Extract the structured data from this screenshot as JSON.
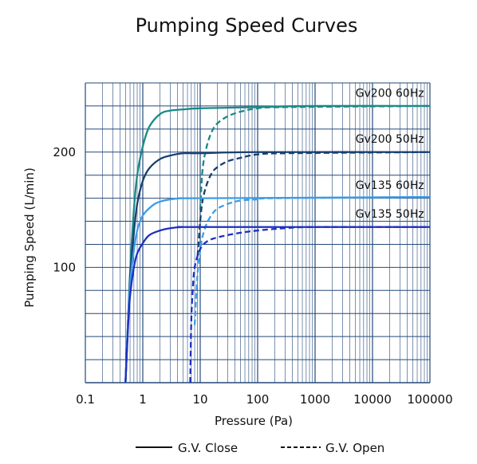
{
  "chart_data": {
    "type": "line",
    "title": "Pumping Speed Curves",
    "xlabel": "Pressure (Pa)",
    "ylabel": "Pumping Speed (L/min)",
    "x_scale": "log",
    "xlim": [
      0.1,
      100000
    ],
    "ylim": [
      0,
      260
    ],
    "x_ticks": [
      {
        "value": 0.1,
        "label": "0.1"
      },
      {
        "value": 1,
        "label": "1"
      },
      {
        "value": 10,
        "label": "10"
      },
      {
        "value": 100,
        "label": "100"
      },
      {
        "value": 1000,
        "label": "1000"
      },
      {
        "value": 10000,
        "label": "10000"
      },
      {
        "value": 100000,
        "label": "100000"
      }
    ],
    "y_ticks": [
      {
        "value": 100,
        "label": "100"
      },
      {
        "value": 200,
        "label": "200"
      }
    ],
    "y_gridlines": [
      20,
      40,
      60,
      80,
      100,
      120,
      140,
      160,
      180,
      200,
      220,
      240,
      260
    ],
    "grid": true,
    "legend": {
      "placement": "bottom",
      "entries": [
        {
          "label": "G.V. Close",
          "style": "solid"
        },
        {
          "label": "G.V. Open",
          "style": "dashed"
        }
      ]
    },
    "series": [
      {
        "name": "Gv200 60Hz",
        "color": "#1a8a84",
        "label": "Gv200 60Hz",
        "label_at": [
          20000,
          248
        ],
        "close": [
          [
            0.5,
            0
          ],
          [
            0.55,
            50
          ],
          [
            0.6,
            95
          ],
          [
            0.7,
            150
          ],
          [
            0.8,
            180
          ],
          [
            1,
            205
          ],
          [
            1.3,
            222
          ],
          [
            2,
            233
          ],
          [
            3,
            236
          ],
          [
            5,
            237
          ],
          [
            10,
            238
          ],
          [
            100,
            239
          ],
          [
            1000,
            240
          ],
          [
            100000,
            240
          ]
        ],
        "open": [
          [
            10,
            150
          ],
          [
            11,
            185
          ],
          [
            13,
            205
          ],
          [
            16,
            218
          ],
          [
            20,
            225
          ],
          [
            30,
            231
          ],
          [
            50,
            235
          ],
          [
            100,
            238
          ],
          [
            300,
            239
          ],
          [
            100000,
            240
          ]
        ]
      },
      {
        "name": "Gv200 50Hz",
        "color": "#1a3f70",
        "label": "Gv200 50Hz",
        "label_at": [
          20000,
          208
        ],
        "close": [
          [
            0.5,
            0
          ],
          [
            0.55,
            50
          ],
          [
            0.6,
            90
          ],
          [
            0.7,
            130
          ],
          [
            0.8,
            155
          ],
          [
            1,
            175
          ],
          [
            1.3,
            186
          ],
          [
            2,
            194
          ],
          [
            3,
            197
          ],
          [
            5,
            199
          ],
          [
            10,
            199
          ],
          [
            100,
            200
          ],
          [
            100000,
            200
          ]
        ],
        "open": [
          [
            9,
            110
          ],
          [
            10,
            140
          ],
          [
            11,
            158
          ],
          [
            13,
            172
          ],
          [
            16,
            182
          ],
          [
            20,
            187
          ],
          [
            30,
            192
          ],
          [
            50,
            195
          ],
          [
            100,
            198
          ],
          [
            300,
            199
          ],
          [
            100000,
            200
          ]
        ]
      },
      {
        "name": "Gv135 60Hz",
        "color": "#3d9de6",
        "label": "Gv135 60Hz",
        "label_at": [
          20000,
          168
        ],
        "close": [
          [
            0.5,
            0
          ],
          [
            0.55,
            50
          ],
          [
            0.6,
            85
          ],
          [
            0.7,
            115
          ],
          [
            0.8,
            132
          ],
          [
            1,
            145
          ],
          [
            1.5,
            154
          ],
          [
            2,
            157
          ],
          [
            3,
            159
          ],
          [
            5,
            160
          ],
          [
            10,
            160
          ],
          [
            100000,
            161
          ]
        ],
        "open": [
          [
            8,
            50
          ],
          [
            9,
            95
          ],
          [
            10,
            115
          ],
          [
            11,
            127
          ],
          [
            13,
            138
          ],
          [
            16,
            146
          ],
          [
            20,
            151
          ],
          [
            30,
            155
          ],
          [
            50,
            158
          ],
          [
            100,
            159
          ],
          [
            200,
            160
          ],
          [
            100000,
            161
          ]
        ]
      },
      {
        "name": "Gv135 50Hz",
        "color": "#1f2fc0",
        "label": "Gv135 50Hz",
        "label_at": [
          20000,
          143
        ],
        "close": [
          [
            0.5,
            0
          ],
          [
            0.55,
            45
          ],
          [
            0.6,
            75
          ],
          [
            0.7,
            100
          ],
          [
            0.8,
            112
          ],
          [
            1,
            121
          ],
          [
            1.3,
            128
          ],
          [
            2,
            132
          ],
          [
            3,
            134
          ],
          [
            5,
            135
          ],
          [
            10,
            135
          ],
          [
            100000,
            135
          ]
        ],
        "open": [
          [
            6.7,
            0
          ],
          [
            7,
            55
          ],
          [
            7.5,
            85
          ],
          [
            8,
            100
          ],
          [
            9,
            110
          ],
          [
            10,
            116
          ],
          [
            12,
            121
          ],
          [
            15,
            124
          ],
          [
            20,
            126
          ],
          [
            30,
            128
          ],
          [
            50,
            130
          ],
          [
            100,
            132
          ],
          [
            300,
            134
          ],
          [
            1000,
            135
          ],
          [
            100000,
            135
          ]
        ]
      }
    ]
  }
}
